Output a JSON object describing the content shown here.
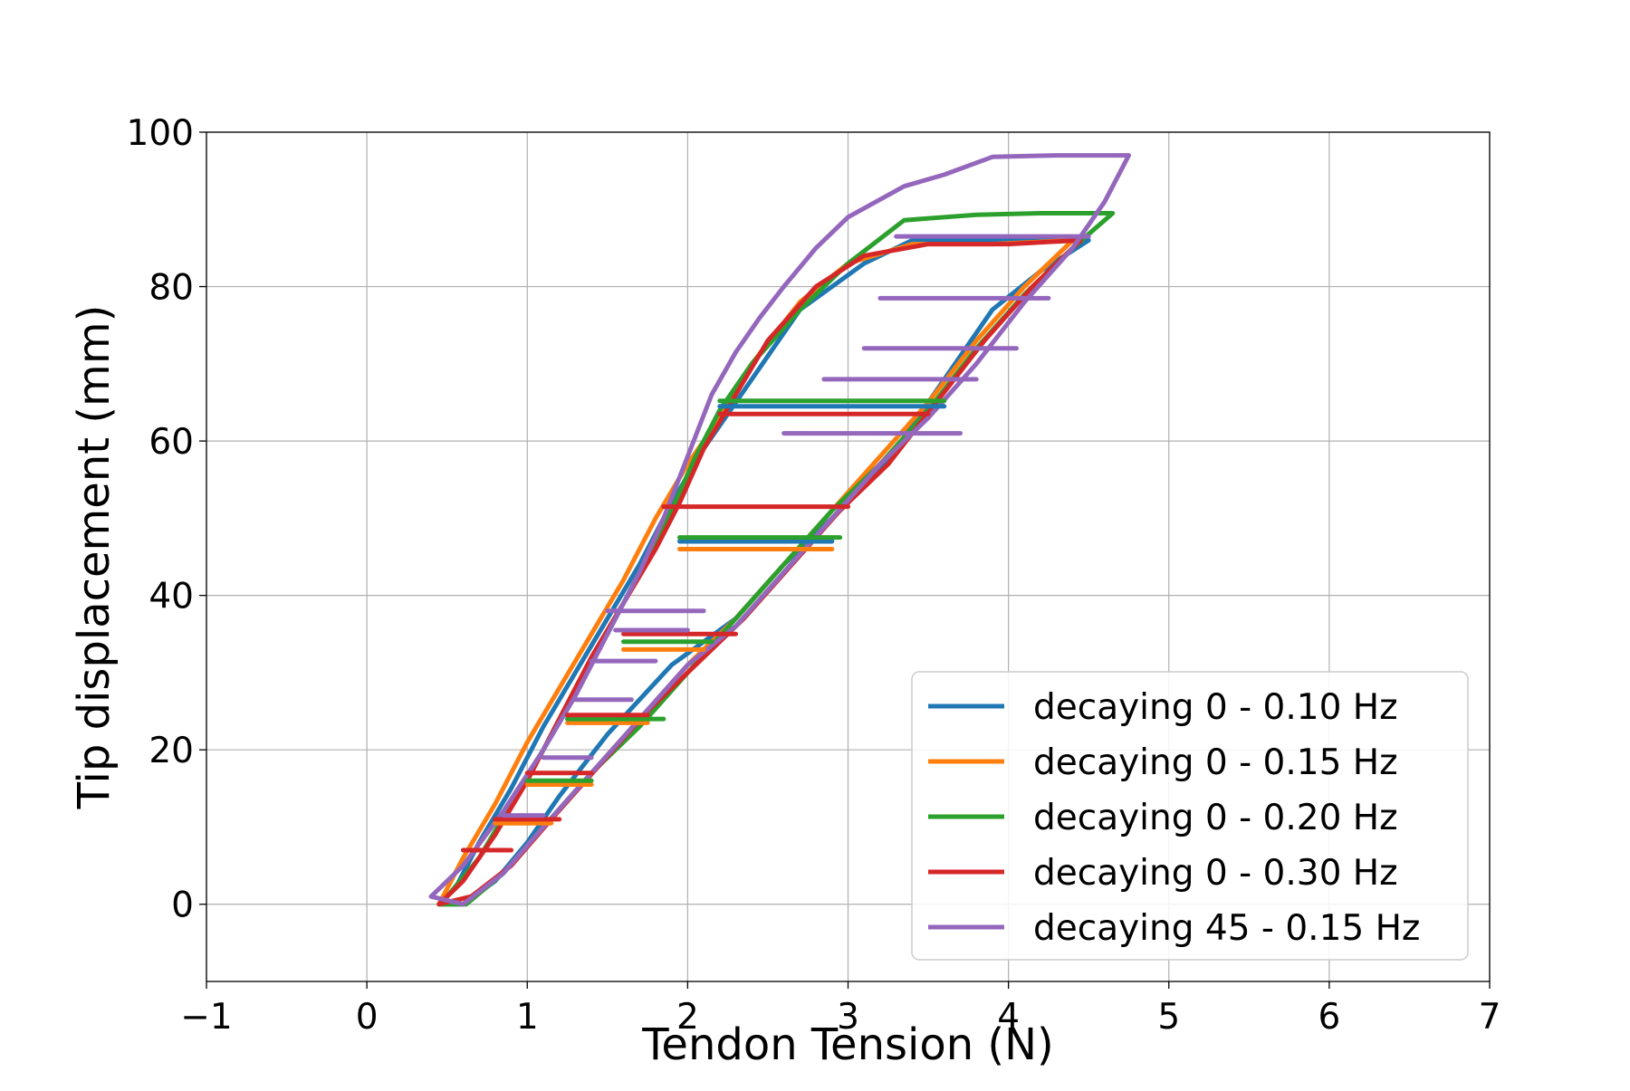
{
  "chart_data": {
    "type": "line",
    "title": "",
    "xlabel": "Tendon Tension (N)",
    "ylabel": "Tip displacement (mm)",
    "xlim": [
      -1,
      7
    ],
    "ylim": [
      -10,
      100
    ],
    "xticks": [
      -1,
      0,
      1,
      2,
      3,
      4,
      5,
      6,
      7
    ],
    "xtick_labels": [
      "−1",
      "0",
      "1",
      "2",
      "3",
      "4",
      "5",
      "6",
      "7"
    ],
    "yticks": [
      0,
      20,
      40,
      60,
      80,
      100
    ],
    "ytick_labels": [
      "0",
      "20",
      "40",
      "60",
      "80",
      "100"
    ],
    "grid": true,
    "legend_position": "bottom-right",
    "series": [
      {
        "name": "decaying 0 - 0.10 Hz",
        "color": "#1f77b4",
        "points": [
          [
            0.45,
            0
          ],
          [
            0.6,
            0
          ],
          [
            0.8,
            3
          ],
          [
            1.0,
            8
          ],
          [
            1.2,
            14
          ],
          [
            1.5,
            22
          ],
          [
            1.9,
            31
          ],
          [
            2.3,
            37
          ],
          [
            2.6,
            44
          ],
          [
            3.0,
            52
          ],
          [
            3.3,
            59
          ],
          [
            3.6,
            68
          ],
          [
            3.9,
            77
          ],
          [
            4.2,
            82
          ],
          [
            4.5,
            86
          ],
          [
            4.0,
            86
          ],
          [
            3.4,
            86
          ],
          [
            3.1,
            83
          ],
          [
            2.7,
            77
          ],
          [
            2.5,
            71
          ],
          [
            2.3,
            65
          ],
          [
            2.1,
            59
          ],
          [
            1.9,
            52
          ],
          [
            1.7,
            44
          ],
          [
            1.5,
            37
          ],
          [
            1.3,
            30
          ],
          [
            1.1,
            23
          ],
          [
            0.9,
            15
          ],
          [
            0.7,
            8
          ],
          [
            0.55,
            2
          ],
          [
            0.45,
            0
          ]
        ]
      },
      {
        "name": "decaying 0 - 0.15 Hz",
        "color": "#ff7f0e",
        "points": [
          [
            0.45,
            0
          ],
          [
            0.65,
            1
          ],
          [
            0.85,
            4
          ],
          [
            1.1,
            10
          ],
          [
            1.4,
            17
          ],
          [
            1.7,
            24
          ],
          [
            2.0,
            31
          ],
          [
            2.3,
            37
          ],
          [
            2.6,
            44
          ],
          [
            2.9,
            51
          ],
          [
            3.2,
            58
          ],
          [
            3.5,
            65
          ],
          [
            3.8,
            73
          ],
          [
            4.1,
            80
          ],
          [
            4.4,
            86
          ],
          [
            3.9,
            85.5
          ],
          [
            3.4,
            85.5
          ],
          [
            3.0,
            83
          ],
          [
            2.7,
            78
          ],
          [
            2.4,
            70
          ],
          [
            2.2,
            63
          ],
          [
            2.0,
            57
          ],
          [
            1.8,
            50
          ],
          [
            1.6,
            42
          ],
          [
            1.4,
            35
          ],
          [
            1.2,
            28
          ],
          [
            1.0,
            21
          ],
          [
            0.8,
            13
          ],
          [
            0.6,
            6
          ],
          [
            0.45,
            0
          ]
        ]
      },
      {
        "name": "decaying 0 - 0.20 Hz",
        "color": "#2ca02c",
        "points": [
          [
            0.45,
            0
          ],
          [
            0.62,
            0
          ],
          [
            0.85,
            4
          ],
          [
            1.1,
            10
          ],
          [
            1.4,
            17
          ],
          [
            1.7,
            23
          ],
          [
            2.0,
            30
          ],
          [
            2.3,
            37
          ],
          [
            2.6,
            44
          ],
          [
            2.9,
            51
          ],
          [
            3.2,
            57
          ],
          [
            3.5,
            64
          ],
          [
            3.8,
            72
          ],
          [
            4.1,
            79
          ],
          [
            4.4,
            85
          ],
          [
            4.65,
            89.5
          ],
          [
            4.2,
            89.5
          ],
          [
            3.8,
            89.3
          ],
          [
            3.35,
            88.6
          ],
          [
            3.0,
            83
          ],
          [
            2.7,
            77
          ],
          [
            2.4,
            70
          ],
          [
            2.2,
            64
          ],
          [
            2.05,
            58
          ],
          [
            1.9,
            51
          ],
          [
            1.7,
            43
          ],
          [
            1.5,
            35
          ],
          [
            1.3,
            28
          ],
          [
            1.1,
            20
          ],
          [
            0.9,
            13
          ],
          [
            0.7,
            6
          ],
          [
            0.5,
            1
          ],
          [
            0.45,
            0
          ]
        ]
      },
      {
        "name": "decaying 0 - 0.30 Hz",
        "color": "#d62728",
        "points": [
          [
            0.45,
            0
          ],
          [
            0.65,
            1
          ],
          [
            0.9,
            5
          ],
          [
            1.15,
            11
          ],
          [
            1.45,
            18
          ],
          [
            1.75,
            25
          ],
          [
            2.05,
            31
          ],
          [
            2.35,
            37
          ],
          [
            2.65,
            44
          ],
          [
            2.95,
            51
          ],
          [
            3.25,
            57
          ],
          [
            3.55,
            65
          ],
          [
            3.85,
            73
          ],
          [
            4.15,
            80
          ],
          [
            4.45,
            86
          ],
          [
            4.0,
            85.5
          ],
          [
            3.5,
            85.5
          ],
          [
            3.1,
            84
          ],
          [
            2.8,
            80
          ],
          [
            2.5,
            73
          ],
          [
            2.3,
            66
          ],
          [
            2.1,
            59
          ],
          [
            1.95,
            52
          ],
          [
            1.8,
            46
          ],
          [
            1.6,
            39
          ],
          [
            1.4,
            32
          ],
          [
            1.2,
            24
          ],
          [
            1.0,
            16
          ],
          [
            0.8,
            9
          ],
          [
            0.6,
            3
          ],
          [
            0.45,
            0
          ]
        ]
      },
      {
        "name": "decaying 45 - 0.15 Hz",
        "color": "#9467bd",
        "points": [
          [
            0.4,
            1
          ],
          [
            0.6,
            0
          ],
          [
            0.85,
            4
          ],
          [
            1.1,
            10
          ],
          [
            1.4,
            17
          ],
          [
            1.7,
            24
          ],
          [
            2.0,
            31
          ],
          [
            2.3,
            36
          ],
          [
            2.6,
            43
          ],
          [
            2.9,
            50
          ],
          [
            3.2,
            57
          ],
          [
            3.5,
            63
          ],
          [
            3.8,
            70
          ],
          [
            4.1,
            78
          ],
          [
            4.4,
            85
          ],
          [
            4.6,
            91
          ],
          [
            4.75,
            97
          ],
          [
            4.3,
            97
          ],
          [
            3.9,
            96.8
          ],
          [
            3.6,
            94.5
          ],
          [
            3.35,
            93
          ],
          [
            3.0,
            89
          ],
          [
            2.8,
            85
          ],
          [
            2.6,
            80
          ],
          [
            2.45,
            76
          ],
          [
            2.3,
            71.5
          ],
          [
            2.15,
            66
          ],
          [
            2.0,
            58
          ],
          [
            1.85,
            50
          ],
          [
            1.7,
            43
          ],
          [
            1.5,
            35
          ],
          [
            1.3,
            27
          ],
          [
            1.1,
            20
          ],
          [
            0.85,
            12
          ],
          [
            0.6,
            5
          ],
          [
            0.4,
            1
          ]
        ]
      }
    ],
    "hysteresis_plateaus": [
      {
        "series": "decaying 0 - 0.10 Hz",
        "y": 47.0,
        "x_start": 1.95,
        "x_end": 2.9
      },
      {
        "series": "decaying 0 - 0.10 Hz",
        "y": 64.5,
        "x_start": 2.2,
        "x_end": 3.6
      },
      {
        "series": "decaying 0 - 0.15 Hz",
        "y": 46.0,
        "x_start": 1.95,
        "x_end": 2.9
      },
      {
        "series": "decaying 0 - 0.15 Hz",
        "y": 33.0,
        "x_start": 1.6,
        "x_end": 2.1
      },
      {
        "series": "decaying 0 - 0.15 Hz",
        "y": 23.5,
        "x_start": 1.25,
        "x_end": 1.75
      },
      {
        "series": "decaying 0 - 0.15 Hz",
        "y": 15.5,
        "x_start": 1.0,
        "x_end": 1.4
      },
      {
        "series": "decaying 0 - 0.15 Hz",
        "y": 10.5,
        "x_start": 0.8,
        "x_end": 1.15
      },
      {
        "series": "decaying 0 - 0.20 Hz",
        "y": 47.5,
        "x_start": 1.95,
        "x_end": 2.95
      },
      {
        "series": "decaying 0 - 0.20 Hz",
        "y": 65.2,
        "x_start": 2.2,
        "x_end": 3.6
      },
      {
        "series": "decaying 0 - 0.20 Hz",
        "y": 34.0,
        "x_start": 1.6,
        "x_end": 2.15
      },
      {
        "series": "decaying 0 - 0.20 Hz",
        "y": 24.0,
        "x_start": 1.25,
        "x_end": 1.85
      },
      {
        "series": "decaying 0 - 0.20 Hz",
        "y": 16.0,
        "x_start": 1.0,
        "x_end": 1.4
      },
      {
        "series": "decaying 0 - 0.30 Hz",
        "y": 51.5,
        "x_start": 1.85,
        "x_end": 3.0
      },
      {
        "series": "decaying 0 - 0.30 Hz",
        "y": 63.5,
        "x_start": 2.2,
        "x_end": 3.5
      },
      {
        "series": "decaying 0 - 0.30 Hz",
        "y": 35.0,
        "x_start": 1.6,
        "x_end": 2.3
      },
      {
        "series": "decaying 0 - 0.30 Hz",
        "y": 24.5,
        "x_start": 1.25,
        "x_end": 1.75
      },
      {
        "series": "decaying 0 - 0.30 Hz",
        "y": 17.0,
        "x_start": 1.0,
        "x_end": 1.4
      },
      {
        "series": "decaying 0 - 0.30 Hz",
        "y": 11.0,
        "x_start": 0.8,
        "x_end": 1.2
      },
      {
        "series": "decaying 0 - 0.30 Hz",
        "y": 7.0,
        "x_start": 0.6,
        "x_end": 0.9
      },
      {
        "series": "decaying 45 - 0.15 Hz",
        "y": 86.5,
        "x_start": 3.3,
        "x_end": 4.5
      },
      {
        "series": "decaying 45 - 0.15 Hz",
        "y": 78.5,
        "x_start": 3.2,
        "x_end": 4.25
      },
      {
        "series": "decaying 45 - 0.15 Hz",
        "y": 72.0,
        "x_start": 3.1,
        "x_end": 4.05
      },
      {
        "series": "decaying 45 - 0.15 Hz",
        "y": 68.0,
        "x_start": 2.85,
        "x_end": 3.8
      },
      {
        "series": "decaying 45 - 0.15 Hz",
        "y": 61.0,
        "x_start": 2.6,
        "x_end": 3.7
      },
      {
        "series": "decaying 45 - 0.15 Hz",
        "y": 38.0,
        "x_start": 1.5,
        "x_end": 2.1
      },
      {
        "series": "decaying 45 - 0.15 Hz",
        "y": 35.5,
        "x_start": 1.55,
        "x_end": 2.0
      },
      {
        "series": "decaying 45 - 0.15 Hz",
        "y": 31.5,
        "x_start": 1.4,
        "x_end": 1.8
      },
      {
        "series": "decaying 45 - 0.15 Hz",
        "y": 26.5,
        "x_start": 1.3,
        "x_end": 1.65
      },
      {
        "series": "decaying 45 - 0.15 Hz",
        "y": 19.0,
        "x_start": 1.1,
        "x_end": 1.4
      },
      {
        "series": "decaying 45 - 0.15 Hz",
        "y": 11.5,
        "x_start": 0.85,
        "x_end": 1.1
      }
    ]
  }
}
